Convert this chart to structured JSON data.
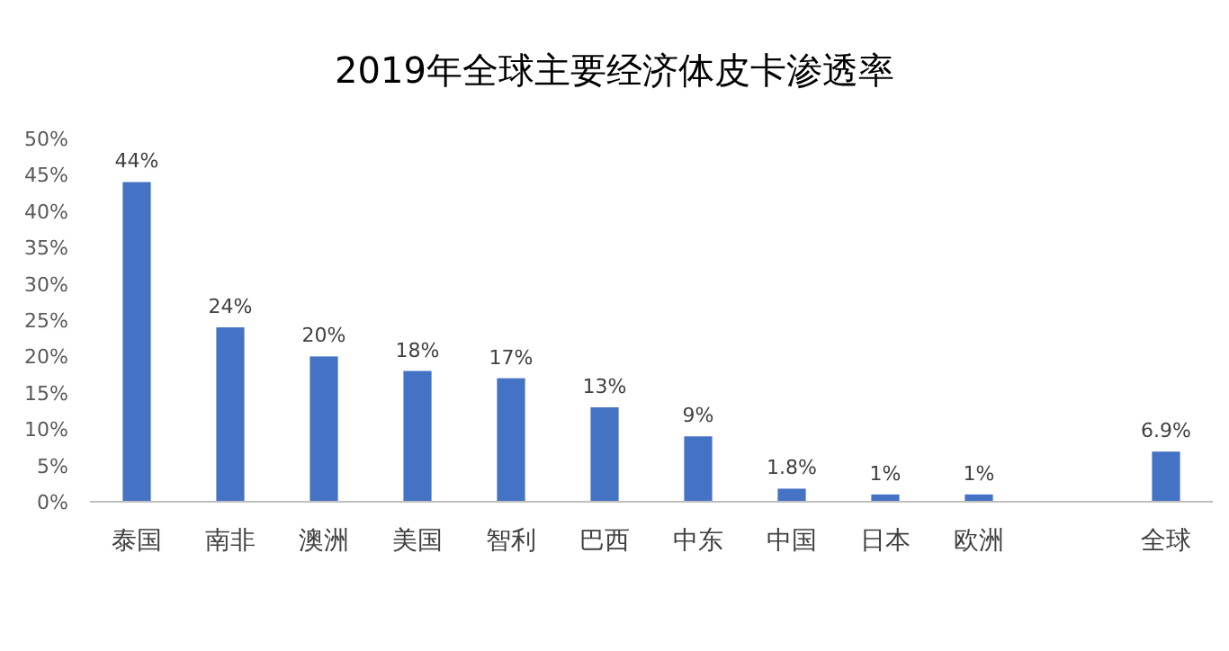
{
  "chart_data": {
    "type": "bar",
    "title": "2019年全球主要经济体皮卡渗透率",
    "categories": [
      "泰国",
      "南非",
      "澳洲",
      "美国",
      "智利",
      "巴西",
      "中东",
      "中国",
      "日本",
      "欧洲",
      null,
      "全球"
    ],
    "values": [
      44,
      24,
      20,
      18,
      17,
      13,
      9,
      1.8,
      1,
      1,
      null,
      6.9
    ],
    "value_labels": [
      "44%",
      "24%",
      "20%",
      "18%",
      "17%",
      "13%",
      "9%",
      "1.8%",
      "1%",
      "1%",
      null,
      "6.9%"
    ],
    "color": "#4472c4",
    "ylim": [
      0,
      50
    ],
    "yticks": [
      {
        "value": 0,
        "label": "0%"
      },
      {
        "value": 5,
        "label": "5%"
      },
      {
        "value": 10,
        "label": "10%"
      },
      {
        "value": 15,
        "label": "15%"
      },
      {
        "value": 20,
        "label": "20%"
      },
      {
        "value": 25,
        "label": "25%"
      },
      {
        "value": 30,
        "label": "30%"
      },
      {
        "value": 35,
        "label": "35%"
      },
      {
        "value": 40,
        "label": "40%"
      },
      {
        "value": 45,
        "label": "45%"
      },
      {
        "value": 50,
        "label": "50%"
      }
    ],
    "grid": false
  }
}
